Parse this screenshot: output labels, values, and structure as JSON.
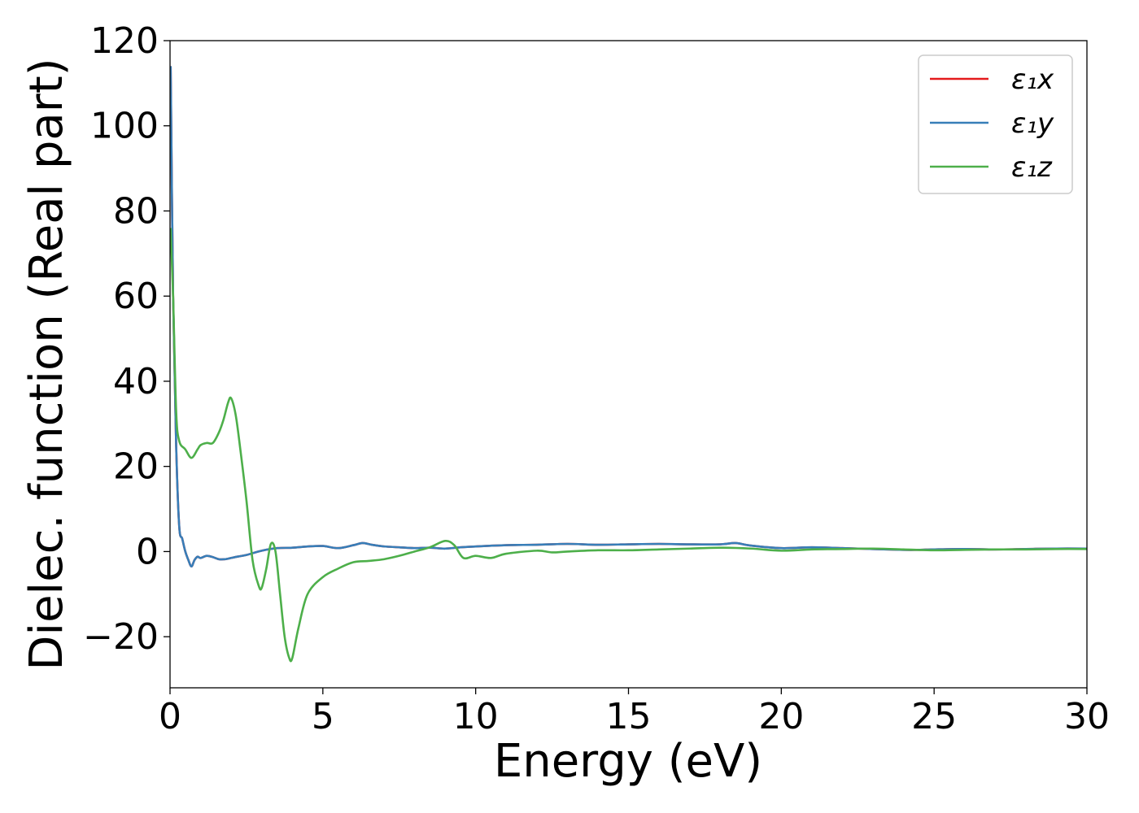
{
  "chart_data": {
    "type": "line",
    "xlabel": "Energy (eV)",
    "ylabel": "Dielec. function (Real part)",
    "xlim": [
      0,
      30
    ],
    "ylim": [
      -32,
      120
    ],
    "xticks": [
      0,
      5,
      10,
      15,
      20,
      25,
      30
    ],
    "yticks": [
      -20,
      0,
      20,
      40,
      60,
      80,
      100,
      120
    ],
    "xtick_labels": [
      "0",
      "5",
      "10",
      "15",
      "20",
      "25",
      "30"
    ],
    "ytick_labels": [
      "−20",
      "0",
      "20",
      "40",
      "60",
      "80",
      "100",
      "120"
    ],
    "grid": false,
    "legend_position": "top-right",
    "series": [
      {
        "name": "ε₁x",
        "color": "#e41a1c",
        "x": [
          0.02,
          0.1,
          0.2,
          0.3,
          0.4,
          0.5,
          0.6,
          0.7,
          0.8,
          0.9,
          1.0,
          1.2,
          1.4,
          1.6,
          1.8,
          2.0,
          2.2,
          2.5,
          3.0,
          3.5,
          4.0,
          4.5,
          5.0,
          5.5,
          6.0,
          6.3,
          6.6,
          7.0,
          7.5,
          8.0,
          8.5,
          9.0,
          9.5,
          10,
          11,
          12,
          13,
          14,
          15,
          16,
          17,
          18,
          18.5,
          19,
          20,
          21,
          22,
          23,
          24,
          24.5,
          25,
          26,
          27,
          28,
          29,
          30
        ],
        "y": [
          114,
          60,
          25,
          6,
          3,
          0,
          -2,
          -3.5,
          -2,
          -1.2,
          -1.5,
          -1,
          -1.3,
          -1.8,
          -1.8,
          -1.5,
          -1.2,
          -0.8,
          0.2,
          0.8,
          0.9,
          1.2,
          1.3,
          0.8,
          1.5,
          2.0,
          1.6,
          1.2,
          1.0,
          0.8,
          0.9,
          0.7,
          1.0,
          1.2,
          1.5,
          1.6,
          1.8,
          1.6,
          1.7,
          1.8,
          1.7,
          1.7,
          2.0,
          1.4,
          0.8,
          1.0,
          0.8,
          0.6,
          0.4,
          0.4,
          0.5,
          0.6,
          0.5,
          0.6,
          0.7,
          0.7
        ]
      },
      {
        "name": "ε₁y",
        "color": "#377eb8",
        "x": [
          0.02,
          0.1,
          0.2,
          0.3,
          0.4,
          0.5,
          0.6,
          0.7,
          0.8,
          0.9,
          1.0,
          1.2,
          1.4,
          1.6,
          1.8,
          2.0,
          2.2,
          2.5,
          3.0,
          3.5,
          4.0,
          4.5,
          5.0,
          5.5,
          6.0,
          6.3,
          6.6,
          7.0,
          7.5,
          8.0,
          8.5,
          9.0,
          9.5,
          10,
          11,
          12,
          13,
          14,
          15,
          16,
          17,
          18,
          18.5,
          19,
          20,
          21,
          22,
          23,
          24,
          24.5,
          25,
          26,
          27,
          28,
          29,
          30
        ],
        "y": [
          114,
          60,
          25,
          6,
          3,
          0,
          -2,
          -3.5,
          -2,
          -1.2,
          -1.5,
          -1,
          -1.3,
          -1.8,
          -1.8,
          -1.5,
          -1.2,
          -0.8,
          0.2,
          0.8,
          0.9,
          1.2,
          1.3,
          0.8,
          1.5,
          2.0,
          1.6,
          1.2,
          1.0,
          0.8,
          0.9,
          0.7,
          1.0,
          1.2,
          1.5,
          1.6,
          1.8,
          1.6,
          1.7,
          1.8,
          1.7,
          1.7,
          2.0,
          1.4,
          0.8,
          1.0,
          0.8,
          0.6,
          0.4,
          0.4,
          0.5,
          0.6,
          0.5,
          0.6,
          0.7,
          0.7
        ]
      },
      {
        "name": "ε₁z",
        "color": "#4daf4a",
        "x": [
          0.02,
          0.1,
          0.2,
          0.3,
          0.5,
          0.7,
          0.9,
          1.0,
          1.2,
          1.4,
          1.6,
          1.75,
          1.9,
          2.0,
          2.15,
          2.3,
          2.5,
          2.7,
          2.9,
          3.0,
          3.15,
          3.3,
          3.45,
          3.6,
          3.75,
          3.9,
          4.0,
          4.2,
          4.5,
          5.0,
          5.5,
          6.0,
          6.5,
          7.0,
          7.5,
          8.0,
          8.5,
          9.0,
          9.3,
          9.6,
          10,
          10.5,
          11,
          12,
          12.5,
          13,
          14,
          15,
          16,
          17,
          18,
          19,
          20,
          21,
          22,
          23,
          24,
          25,
          26,
          27,
          28,
          29,
          30
        ],
        "y": [
          76,
          60,
          33,
          26,
          24,
          22,
          24,
          25,
          25.5,
          25.5,
          28,
          31,
          35,
          36,
          32,
          24,
          12,
          -2,
          -8,
          -8.5,
          -4,
          1.8,
          0,
          -10,
          -20,
          -25,
          -25,
          -18,
          -10,
          -6,
          -4,
          -2.5,
          -2.2,
          -1.8,
          -1,
          0,
          1,
          2.5,
          1.5,
          -1.5,
          -1,
          -1.5,
          -0.5,
          0.2,
          -0.2,
          0,
          0.3,
          0.3,
          0.5,
          0.7,
          0.9,
          0.7,
          0.2,
          0.5,
          0.6,
          0.7,
          0.5,
          0.3,
          0.4,
          0.5,
          0.5,
          0.6,
          0.6
        ]
      }
    ]
  }
}
